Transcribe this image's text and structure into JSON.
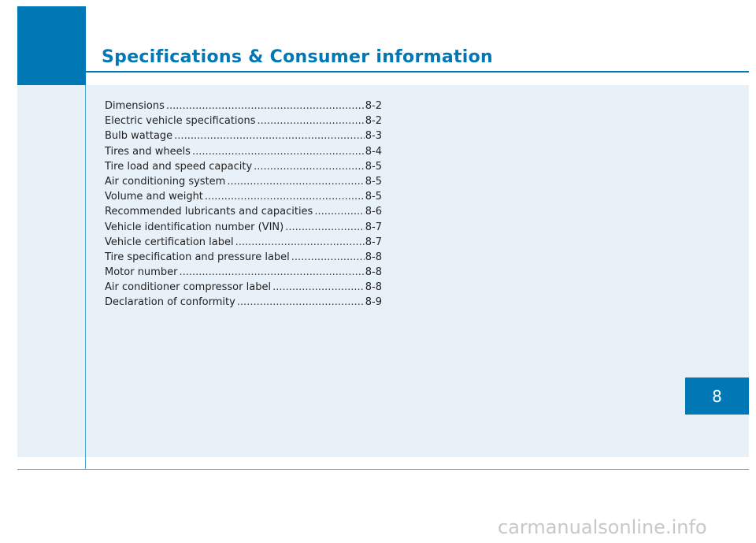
{
  "header": {
    "title": "Specifications & Consumer information"
  },
  "toc": {
    "items": [
      {
        "label": "Dimensions",
        "page": "8-2"
      },
      {
        "label": "Electric vehicle specifications",
        "page": "8-2"
      },
      {
        "label": "Bulb wattage",
        "page": "8-3"
      },
      {
        "label": "Tires and wheels",
        "page": "8-4"
      },
      {
        "label": "Tire load and speed capacity",
        "page": "8-5"
      },
      {
        "label": "Air conditioning system",
        "page": "8-5"
      },
      {
        "label": "Volume and weight",
        "page": "8-5"
      },
      {
        "label": "Recommended lubricants and capacities",
        "page": "8-6"
      },
      {
        "label": "Vehicle identification number (VIN)",
        "page": "8-7"
      },
      {
        "label": "Vehicle certification label",
        "page": "8-7"
      },
      {
        "label": "Tire specification and pressure label",
        "page": "8-8"
      },
      {
        "label": "Motor number",
        "page": "8-8"
      },
      {
        "label": "Air conditioner compressor label",
        "page": "8-8"
      },
      {
        "label": "Declaration of conformity",
        "page": "8-9"
      }
    ]
  },
  "chapter_tab": {
    "number": "8"
  },
  "watermark": {
    "text": "carmanualsonline.info"
  },
  "colors": {
    "accent": "#0078b6",
    "panel": "#e9f1f8",
    "rule": "#4aa3d1"
  }
}
